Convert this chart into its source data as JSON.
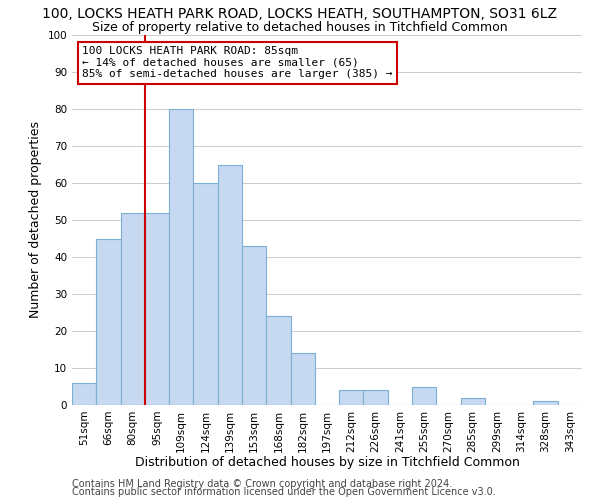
{
  "title_line1": "100, LOCKS HEATH PARK ROAD, LOCKS HEATH, SOUTHAMPTON, SO31 6LZ",
  "title_line2": "Size of property relative to detached houses in Titchfield Common",
  "xlabel": "Distribution of detached houses by size in Titchfield Common",
  "ylabel": "Number of detached properties",
  "bin_labels": [
    "51sqm",
    "66sqm",
    "80sqm",
    "95sqm",
    "109sqm",
    "124sqm",
    "139sqm",
    "153sqm",
    "168sqm",
    "182sqm",
    "197sqm",
    "212sqm",
    "226sqm",
    "241sqm",
    "255sqm",
    "270sqm",
    "285sqm",
    "299sqm",
    "314sqm",
    "328sqm",
    "343sqm"
  ],
  "bar_heights": [
    6,
    45,
    52,
    52,
    80,
    60,
    65,
    43,
    24,
    14,
    0,
    4,
    4,
    0,
    5,
    0,
    2,
    0,
    0,
    1,
    0
  ],
  "bar_color": "#c6d9f0",
  "bar_edge_color": "#7bafd4",
  "vline_index": 2,
  "vline_color": "#cc0000",
  "annotation_text": "100 LOCKS HEATH PARK ROAD: 85sqm\n← 14% of detached houses are smaller (65)\n85% of semi-detached houses are larger (385) →",
  "annotation_box_color": "#ffffff",
  "annotation_box_edgecolor": "#cc0000",
  "ylim": [
    0,
    100
  ],
  "footer_line1": "Contains HM Land Registry data © Crown copyright and database right 2024.",
  "footer_line2": "Contains public sector information licensed under the Open Government Licence v3.0.",
  "background_color": "#ffffff",
  "grid_color": "#cccccc",
  "title_fontsize": 10,
  "subtitle_fontsize": 9,
  "axis_label_fontsize": 9,
  "tick_fontsize": 7.5,
  "annotation_fontsize": 8,
  "footer_fontsize": 7
}
